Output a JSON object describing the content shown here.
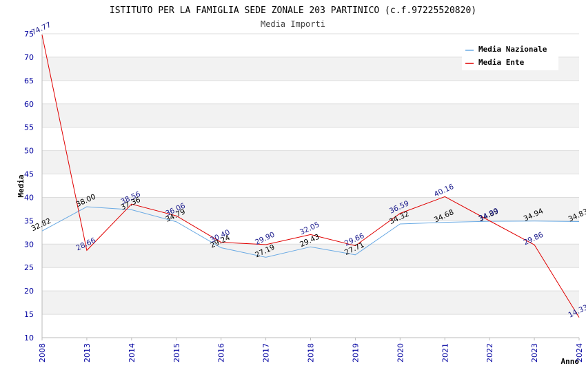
{
  "chart_data": {
    "type": "line",
    "title": "ISTITUTO PER LA FAMIGLIA SEDE ZONALE 203 PARTINICO (c.f.97225520820)",
    "subtitle": "Media Importi",
    "xlabel": "Anno",
    "ylabel": "Media",
    "categories": [
      "2008",
      "2013",
      "2014",
      "2015",
      "2016",
      "2017",
      "2018",
      "2019",
      "2020",
      "2021",
      "2022",
      "2023",
      "2024"
    ],
    "ylim": [
      10,
      75
    ],
    "yticks": [
      "10",
      "15",
      "20",
      "25",
      "30",
      "35",
      "40",
      "45",
      "50",
      "55",
      "60",
      "65",
      "70",
      "75"
    ],
    "legend_position": "top-right",
    "series": [
      {
        "name": "Media Nazionale",
        "color": "#6aaae4",
        "values": [
          32.82,
          38.0,
          37.36,
          34.79,
          29.24,
          27.19,
          29.43,
          27.71,
          34.32,
          34.68,
          34.89,
          34.94,
          34.83
        ],
        "labels": [
          "32.82",
          "38.00",
          "37.36",
          "34.79",
          "29.24",
          "27.19",
          "29.43",
          "27.71",
          "34.32",
          "34.68",
          "34.89",
          "34.94",
          "34.83"
        ]
      },
      {
        "name": "Media Ente",
        "color": "#e00000",
        "values": [
          74.77,
          28.66,
          38.56,
          36.06,
          30.4,
          29.9,
          32.05,
          29.66,
          36.59,
          40.16,
          34.99,
          29.86,
          14.33
        ],
        "labels": [
          "74.77",
          "28.66",
          "38.56",
          "36.06",
          "30.40",
          "29.90",
          "32.05",
          "29.66",
          "36.59",
          "40.16",
          "34.99",
          "29.86",
          "14.33"
        ]
      }
    ]
  }
}
